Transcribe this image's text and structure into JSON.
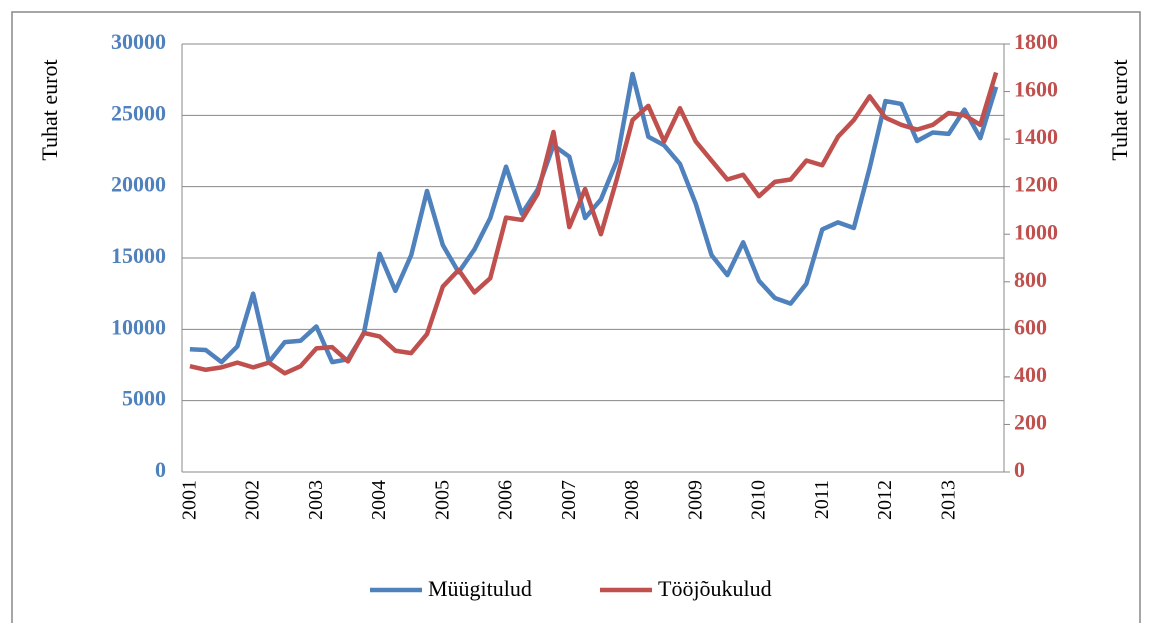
{
  "chart_data": {
    "type": "line",
    "categories": [
      "2001",
      null,
      null,
      null,
      "2002",
      null,
      null,
      null,
      "2003",
      null,
      null,
      null,
      "2004",
      null,
      null,
      null,
      "2005",
      null,
      null,
      null,
      "2006",
      null,
      null,
      null,
      "2007",
      null,
      null,
      null,
      "2008",
      null,
      null,
      null,
      "2009",
      null,
      null,
      null,
      "2010",
      null,
      null,
      null,
      "2011",
      null,
      null,
      null,
      "2012",
      null,
      null,
      null,
      "2013",
      null,
      null,
      null
    ],
    "series": [
      {
        "name": "Müügitulud",
        "color": "#4f81bd",
        "values": [
          8600,
          8550,
          7700,
          8800,
          12500,
          7700,
          9100,
          9200,
          10200,
          7700,
          7900,
          9700,
          15300,
          12700,
          15200,
          19700,
          15900,
          14000,
          15600,
          17800,
          21400,
          18100,
          19800,
          22900,
          22100,
          17800,
          19100,
          21800,
          27900,
          23500,
          22900,
          21600,
          18800,
          15200,
          13800,
          16100,
          13400,
          12200,
          11800,
          13200,
          17000,
          17500,
          17100,
          21300,
          26000,
          25800,
          23200,
          23800,
          23700,
          25400,
          23400,
          27000
        ]
      },
      {
        "name": "Tööjõukulud",
        "color": "#c0504d",
        "axis": "y2",
        "values": [
          445,
          430,
          440,
          460,
          440,
          460,
          415,
          445,
          520,
          525,
          465,
          585,
          570,
          510,
          500,
          580,
          780,
          850,
          755,
          815,
          1070,
          1060,
          1170,
          1430,
          1030,
          1190,
          1000,
          1230,
          1480,
          1540,
          1390,
          1530,
          1390,
          1310,
          1230,
          1250,
          1160,
          1220,
          1230,
          1310,
          1290,
          1410,
          1480,
          1580,
          1490,
          1460,
          1440,
          1460,
          1510,
          1500,
          1460,
          1680
        ]
      }
    ],
    "ylabel": "Tuhat eurot",
    "y2label": "Tuhat eurot",
    "ylim": [
      0,
      30000
    ],
    "yticks": [
      0,
      5000,
      10000,
      15000,
      20000,
      25000,
      30000
    ],
    "y2lim": [
      0,
      1800
    ],
    "y2ticks": [
      0,
      200,
      400,
      600,
      800,
      1000,
      1200,
      1400,
      1600,
      1800
    ],
    "grid": true,
    "legend": "bottom"
  }
}
